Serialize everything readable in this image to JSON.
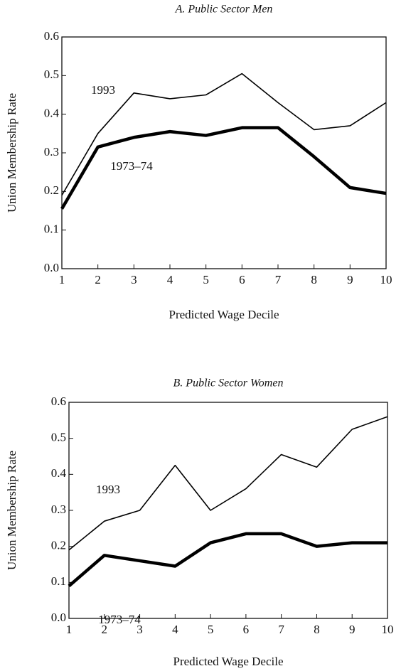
{
  "chart_data": [
    {
      "type": "line",
      "title": "A. Public Sector Men",
      "x_label": "Predicted Wage Decile",
      "y_label": "Union Membership Rate",
      "x": [
        1,
        2,
        3,
        4,
        5,
        6,
        7,
        8,
        9,
        10
      ],
      "series": [
        {
          "name": "1993",
          "color": "#000000",
          "values": [
            0.19,
            0.35,
            0.455,
            0.44,
            0.45,
            0.505,
            0.43,
            0.36,
            0.37,
            0.43
          ]
        },
        {
          "name": "1973–74",
          "color": "#000000",
          "values": [
            0.155,
            0.315,
            0.34,
            0.355,
            0.345,
            0.365,
            0.365,
            0.29,
            0.21,
            0.195
          ]
        }
      ],
      "xlim": [
        1,
        10
      ],
      "xticks": [
        1,
        2,
        3,
        4,
        5,
        6,
        7,
        8,
        9,
        10
      ],
      "ylim": [
        0,
        0.6
      ],
      "yticks": [
        {
          "value": 0,
          "label": "0.0"
        },
        0.1,
        0.2,
        0.3,
        0.4,
        0.5,
        0.6
      ],
      "grid": false
    },
    {
      "type": "line",
      "title": "B. Public Sector Women",
      "x_label": "Predicted Wage Decile",
      "y_label": "Union Membership Rate",
      "x": [
        1,
        2,
        3,
        4,
        5,
        6,
        7,
        8,
        9,
        10
      ],
      "series": [
        {
          "name": "1993",
          "color": "#000000",
          "values": [
            0.19,
            0.27,
            0.3,
            0.425,
            0.3,
            0.36,
            0.455,
            0.42,
            0.525,
            0.56
          ]
        },
        {
          "name": "1973–74",
          "color": "#000000",
          "values": [
            0.09,
            0.175,
            0.16,
            0.145,
            0.21,
            0.235,
            0.235,
            0.2,
            0.21,
            0.21
          ]
        }
      ],
      "xlim": [
        1,
        10
      ],
      "xticks": [
        1,
        2,
        3,
        4,
        5,
        6,
        7,
        8,
        9,
        10
      ],
      "ylim": [
        0,
        0.6
      ],
      "yticks": [
        {
          "value": 0,
          "label": "0.0"
        },
        0.1,
        0.2,
        0.3,
        0.4,
        0.5,
        0.6
      ],
      "grid": false
    }
  ]
}
